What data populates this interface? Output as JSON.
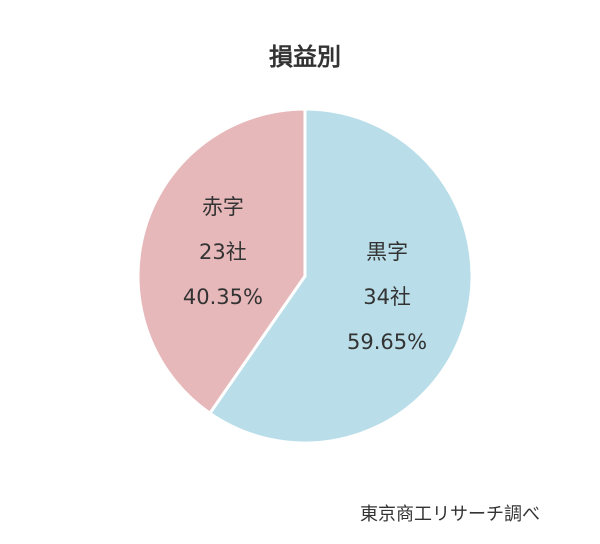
{
  "chart_data": {
    "type": "pie",
    "title": "損益別",
    "categories": [
      "黒字",
      "赤字"
    ],
    "values": [
      34,
      23
    ],
    "value_labels": [
      "34社",
      "23社"
    ],
    "percent_labels": [
      "59.65%",
      "40.35%"
    ],
    "colors": [
      "#b9dee9",
      "#e7b8ba"
    ],
    "source": "東京商工リサーチ調べ"
  }
}
